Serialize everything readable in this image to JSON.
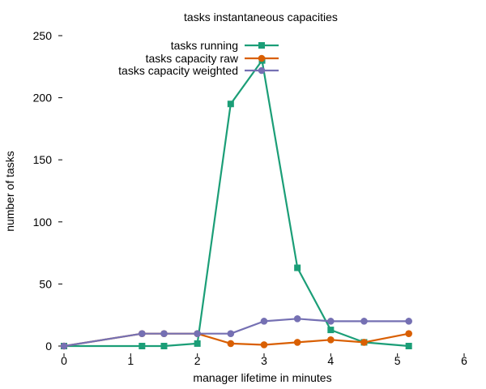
{
  "chart_data": {
    "type": "line",
    "title": "tasks instantaneous capacities",
    "xlabel": "manager lifetime in minutes",
    "ylabel": "number of tasks",
    "xlim": [
      0,
      6
    ],
    "ylim": [
      0,
      250
    ],
    "xticks": [
      0,
      1,
      2,
      3,
      4,
      5,
      6
    ],
    "yticks": [
      0,
      50,
      100,
      150,
      200,
      250
    ],
    "grid": false,
    "legend_position": "top-center",
    "series": [
      {
        "name": "tasks running",
        "color": "#1b9e77",
        "marker": "square",
        "x": [
          0,
          1.17,
          1.5,
          2.0,
          2.5,
          2.97,
          3.5,
          4.0,
          4.5,
          5.17
        ],
        "y": [
          0,
          0,
          0,
          2,
          195,
          230,
          63,
          13,
          3,
          0
        ]
      },
      {
        "name": "tasks capacity raw",
        "color": "#d95f02",
        "marker": "circle",
        "x": [
          0,
          1.17,
          1.5,
          2.0,
          2.5,
          3.0,
          3.5,
          4.0,
          4.5,
          5.17
        ],
        "y": [
          0,
          10,
          10,
          10,
          2,
          1,
          3,
          5,
          3,
          10
        ]
      },
      {
        "name": "tasks capacity weighted",
        "color": "#7570b3",
        "marker": "circle",
        "x": [
          0,
          1.17,
          1.5,
          2.0,
          2.5,
          3.0,
          3.5,
          4.0,
          4.5,
          5.17
        ],
        "y": [
          0,
          10,
          10,
          10,
          10,
          20,
          22,
          20,
          20,
          20
        ]
      }
    ]
  }
}
